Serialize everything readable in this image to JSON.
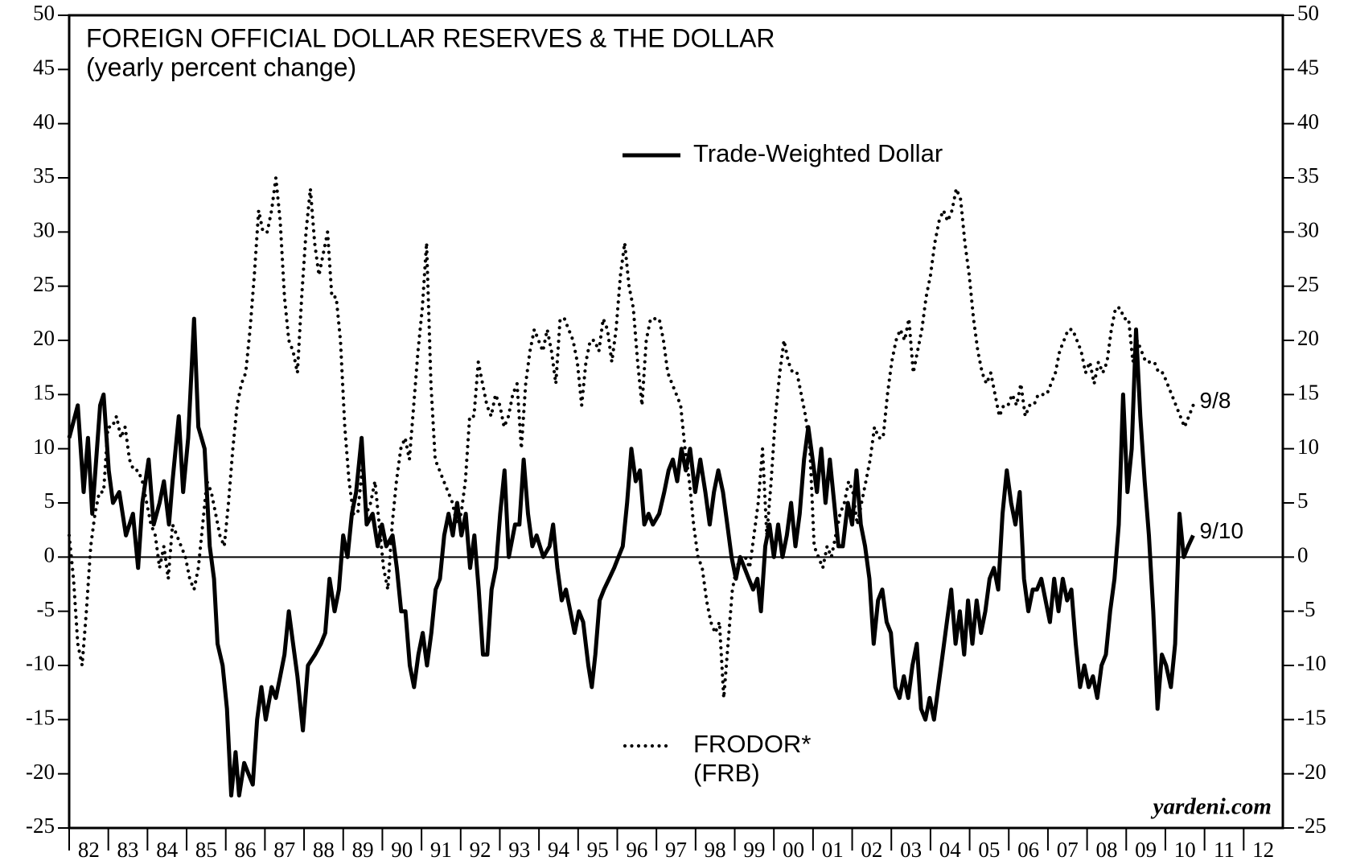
{
  "chart_data": {
    "type": "line",
    "title": "FOREIGN OFFICIAL DOLLAR RESERVES & THE DOLLAR",
    "subtitle": "(yearly percent change)",
    "watermark": "yardeni.com",
    "xlim": [
      1982,
      2013
    ],
    "xticks": [
      {
        "value": 1982,
        "label": "82"
      },
      {
        "value": 1983,
        "label": "83"
      },
      {
        "value": 1984,
        "label": "84"
      },
      {
        "value": 1985,
        "label": "85"
      },
      {
        "value": 1986,
        "label": "86"
      },
      {
        "value": 1987,
        "label": "87"
      },
      {
        "value": 1988,
        "label": "88"
      },
      {
        "value": 1989,
        "label": "89"
      },
      {
        "value": 1990,
        "label": "90"
      },
      {
        "value": 1991,
        "label": "91"
      },
      {
        "value": 1992,
        "label": "92"
      },
      {
        "value": 1993,
        "label": "93"
      },
      {
        "value": 1994,
        "label": "94"
      },
      {
        "value": 1995,
        "label": "95"
      },
      {
        "value": 1996,
        "label": "96"
      },
      {
        "value": 1997,
        "label": "97"
      },
      {
        "value": 1998,
        "label": "98"
      },
      {
        "value": 1999,
        "label": "99"
      },
      {
        "value": 2000,
        "label": "00"
      },
      {
        "value": 2001,
        "label": "01"
      },
      {
        "value": 2002,
        "label": "02"
      },
      {
        "value": 2003,
        "label": "03"
      },
      {
        "value": 2004,
        "label": "04"
      },
      {
        "value": 2005,
        "label": "05"
      },
      {
        "value": 2006,
        "label": "06"
      },
      {
        "value": 2007,
        "label": "07"
      },
      {
        "value": 2008,
        "label": "08"
      },
      {
        "value": 2009,
        "label": "09"
      },
      {
        "value": 2010,
        "label": "10"
      },
      {
        "value": 2011,
        "label": "11"
      },
      {
        "value": 2012,
        "label": "12"
      }
    ],
    "ylim": [
      -25,
      50
    ],
    "yticks": [
      -25,
      -20,
      -15,
      -10,
      -5,
      0,
      5,
      10,
      15,
      20,
      25,
      30,
      35,
      40,
      45,
      50
    ],
    "y2lim": [
      -25,
      50
    ],
    "y2ticks": [
      -25,
      -20,
      -15,
      -10,
      -5,
      0,
      5,
      10,
      15,
      20,
      25,
      30,
      35,
      40,
      45,
      50
    ],
    "reference_line": 0,
    "series": [
      {
        "name": "Trade-Weighted Dollar",
        "color": "#000000",
        "style": "solid",
        "end_label": "9/10",
        "x": [
          1982.0,
          1982.22,
          1982.37,
          1982.48,
          1982.59,
          1982.79,
          1982.88,
          1983.01,
          1983.12,
          1983.28,
          1983.45,
          1983.63,
          1983.76,
          1983.87,
          1984.03,
          1984.16,
          1984.31,
          1984.42,
          1984.55,
          1984.64,
          1984.8,
          1984.91,
          1985.04,
          1985.19,
          1985.3,
          1985.46,
          1985.59,
          1985.7,
          1985.79,
          1985.92,
          1986.03,
          1986.14,
          1986.25,
          1986.34,
          1986.47,
          1986.58,
          1986.69,
          1986.8,
          1986.91,
          1987.02,
          1987.17,
          1987.28,
          1987.39,
          1987.5,
          1987.61,
          1987.72,
          1987.83,
          1987.97,
          1988.1,
          1988.28,
          1988.43,
          1988.54,
          1988.65,
          1988.78,
          1988.89,
          1989.0,
          1989.11,
          1989.22,
          1989.33,
          1989.47,
          1989.6,
          1989.75,
          1989.88,
          1989.99,
          1990.1,
          1990.26,
          1990.37,
          1990.48,
          1990.59,
          1990.7,
          1990.81,
          1990.92,
          1991.03,
          1991.14,
          1991.25,
          1991.36,
          1991.47,
          1991.58,
          1991.69,
          1991.8,
          1991.91,
          1992.02,
          1992.13,
          1992.24,
          1992.35,
          1992.46,
          1992.57,
          1992.68,
          1992.79,
          1992.9,
          1993.01,
          1993.12,
          1993.23,
          1993.39,
          1993.5,
          1993.61,
          1993.72,
          1993.83,
          1993.94,
          1994.11,
          1994.27,
          1994.36,
          1994.47,
          1994.58,
          1994.69,
          1994.8,
          1994.91,
          1995.02,
          1995.13,
          1995.26,
          1995.35,
          1995.44,
          1995.55,
          1995.66,
          1995.79,
          1995.92,
          1996.03,
          1996.14,
          1996.25,
          1996.36,
          1996.47,
          1996.58,
          1996.69,
          1996.8,
          1996.91,
          1997.07,
          1997.2,
          1997.31,
          1997.42,
          1997.53,
          1997.64,
          1997.75,
          1997.86,
          1997.99,
          1998.12,
          1998.25,
          1998.36,
          1998.47,
          1998.58,
          1998.7,
          1998.81,
          1998.92,
          1999.03,
          1999.14,
          1999.25,
          1999.36,
          1999.47,
          1999.58,
          1999.67,
          1999.78,
          1999.89,
          2000.0,
          2000.11,
          2000.22,
          2000.33,
          2000.44,
          2000.55,
          2000.66,
          2000.77,
          2000.88,
          2000.99,
          2001.1,
          2001.21,
          2001.32,
          2001.43,
          2001.54,
          2001.65,
          2001.76,
          2001.89,
          2002.0,
          2002.11,
          2002.22,
          2002.33,
          2002.44,
          2002.55,
          2002.66,
          2002.77,
          2002.88,
          2002.99,
          2003.1,
          2003.21,
          2003.32,
          2003.43,
          2003.54,
          2003.65,
          2003.76,
          2003.87,
          2003.98,
          2004.09,
          2004.2,
          2004.31,
          2004.42,
          2004.53,
          2004.64,
          2004.75,
          2004.86,
          2004.96,
          2005.07,
          2005.18,
          2005.29,
          2005.4,
          2005.51,
          2005.62,
          2005.73,
          2005.84,
          2005.95,
          2006.06,
          2006.17,
          2006.28,
          2006.39,
          2006.5,
          2006.61,
          2006.72,
          2006.83,
          2006.94,
          2007.05,
          2007.16,
          2007.27,
          2007.38,
          2007.49,
          2007.6,
          2007.71,
          2007.82,
          2007.93,
          2008.04,
          2008.15,
          2008.26,
          2008.37,
          2008.48,
          2008.59,
          2008.7,
          2008.81,
          2008.92,
          2009.03,
          2009.14,
          2009.25,
          2009.36,
          2009.47,
          2009.58,
          2009.69,
          2009.8,
          2009.91,
          2010.02,
          2010.14,
          2010.25,
          2010.36,
          2010.47,
          2010.58,
          2010.71
        ],
        "values": [
          11,
          14,
          6,
          11,
          4,
          14,
          15,
          8,
          5,
          6,
          2,
          4,
          -1,
          5,
          9,
          3,
          5,
          7,
          3,
          7,
          13,
          6,
          11,
          22,
          12,
          10,
          1,
          -2,
          -8,
          -10,
          -14,
          -22,
          -18,
          -22,
          -19,
          -20,
          -21,
          -15,
          -12,
          -15,
          -12,
          -13,
          -11,
          -9,
          -5,
          -8,
          -11,
          -16,
          -10,
          -9,
          -8,
          -7,
          -2,
          -5,
          -3,
          2,
          0,
          4,
          6,
          11,
          3,
          4,
          1,
          3,
          1,
          2,
          -1,
          -5,
          -5,
          -10,
          -12,
          -9,
          -7,
          -10,
          -7,
          -3,
          -2,
          2,
          4,
          2,
          5,
          2,
          4,
          -1,
          2,
          -3,
          -9,
          -9,
          -3,
          -1,
          4,
          8,
          0,
          3,
          3,
          9,
          4,
          1,
          2,
          0,
          1,
          3,
          -1,
          -4,
          -3,
          -5,
          -7,
          -5,
          -6,
          -10,
          -12,
          -9,
          -4,
          -3,
          -2,
          -1,
          0,
          1,
          5,
          10,
          7,
          8,
          3,
          4,
          3,
          4,
          6,
          8,
          9,
          7,
          10,
          8,
          10,
          6,
          9,
          6,
          3,
          6,
          8,
          6,
          3,
          0,
          -2,
          0,
          -1,
          -2,
          -3,
          -2,
          -5,
          1,
          3,
          0,
          3,
          0,
          2,
          5,
          1,
          4,
          9,
          12,
          9,
          6,
          10,
          5,
          9,
          5,
          1,
          1,
          5,
          3,
          8,
          3,
          1,
          -2,
          -8,
          -4,
          -3,
          -6,
          -7,
          -12,
          -13,
          -11,
          -13,
          -10,
          -8,
          -14,
          -15,
          -13,
          -15,
          -12,
          -9,
          -6,
          -3,
          -8,
          -5,
          -9,
          -4,
          -8,
          -4,
          -7,
          -5,
          -2,
          -1,
          -3,
          4,
          8,
          5,
          3,
          6,
          -2,
          -5,
          -3,
          -3,
          -2,
          -4,
          -6,
          -2,
          -5,
          -2,
          -4,
          -3,
          -8,
          -12,
          -10,
          -12,
          -11,
          -13,
          -10,
          -9,
          -5,
          -2,
          3,
          15,
          6,
          10,
          21,
          13,
          7,
          2,
          -5,
          -14,
          -9,
          -10,
          -12,
          -8,
          4,
          0,
          1,
          2
        ]
      },
      {
        "name": "FRODOR*",
        "source": "(FRB)",
        "color": "#000000",
        "style": "dotted",
        "end_label": "9/8",
        "x": [
          1982,
          1982.11,
          1982.22,
          1982.33,
          1982.44,
          1982.55,
          1982.66,
          1982.77,
          1982.88,
          1982.99,
          1983.1,
          1983.21,
          1983.32,
          1983.43,
          1983.54,
          1983.65,
          1983.76,
          1983.87,
          1983.98,
          1984.09,
          1984.2,
          1984.31,
          1984.42,
          1984.53,
          1984.64,
          1984.75,
          1984.86,
          1984.97,
          1985.08,
          1985.19,
          1985.3,
          1985.41,
          1985.52,
          1985.63,
          1985.74,
          1985.85,
          1985.96,
          1986.07,
          1986.18,
          1986.29,
          1986.4,
          1986.51,
          1986.62,
          1986.73,
          1986.84,
          1986.95,
          1987.06,
          1987.17,
          1987.28,
          1987.39,
          1987.5,
          1987.61,
          1987.72,
          1987.83,
          1987.94,
          1988.05,
          1988.16,
          1988.27,
          1988.38,
          1988.49,
          1988.6,
          1988.71,
          1988.82,
          1988.93,
          1989.04,
          1989.15,
          1989.26,
          1989.37,
          1989.48,
          1989.59,
          1989.7,
          1989.81,
          1989.92,
          1990.03,
          1990.14,
          1990.25,
          1990.36,
          1990.47,
          1990.58,
          1990.69,
          1990.8,
          1990.91,
          1991.02,
          1991.13,
          1991.24,
          1991.35,
          1991.46,
          1991.57,
          1991.68,
          1991.79,
          1991.9,
          1992.01,
          1992.12,
          1992.23,
          1992.34,
          1992.45,
          1992.56,
          1992.67,
          1992.78,
          1992.89,
          1993,
          1993.11,
          1993.22,
          1993.33,
          1993.44,
          1993.55,
          1993.66,
          1993.77,
          1993.88,
          1993.99,
          1994.1,
          1994.21,
          1994.32,
          1994.43,
          1994.54,
          1994.65,
          1994.76,
          1994.87,
          1994.98,
          1995.09,
          1995.2,
          1995.31,
          1995.42,
          1995.53,
          1995.64,
          1995.75,
          1995.86,
          1995.97,
          1996.08,
          1996.19,
          1996.3,
          1996.41,
          1996.52,
          1996.63,
          1996.74,
          1996.85,
          1996.96,
          1997.07,
          1997.18,
          1997.29,
          1997.4,
          1997.51,
          1997.62,
          1997.73,
          1997.84,
          1997.95,
          1998.06,
          1998.17,
          1998.28,
          1998.39,
          1998.5,
          1998.61,
          1998.72,
          1998.83,
          1998.94,
          1999.05,
          1999.16,
          1999.27,
          1999.38,
          1999.49,
          1999.6,
          1999.71,
          1999.82,
          1999.93,
          2000.04,
          2000.15,
          2000.26,
          2000.37,
          2000.48,
          2000.59,
          2000.7,
          2000.81,
          2000.92,
          2001.03,
          2001.14,
          2001.25,
          2001.36,
          2001.47,
          2001.58,
          2001.69,
          2001.8,
          2001.91,
          2002.02,
          2002.13,
          2002.24,
          2002.35,
          2002.46,
          2002.57,
          2002.68,
          2002.79,
          2002.9,
          2003.01,
          2003.12,
          2003.23,
          2003.34,
          2003.45,
          2003.56,
          2003.67,
          2003.78,
          2003.89,
          2004,
          2004.11,
          2004.22,
          2004.33,
          2004.44,
          2004.55,
          2004.66,
          2004.77,
          2004.88,
          2004.99,
          2005.1,
          2005.21,
          2005.32,
          2005.43,
          2005.54,
          2005.65,
          2005.76,
          2005.87,
          2005.98,
          2006.09,
          2006.2,
          2006.31,
          2006.42,
          2006.53,
          2006.64,
          2006.75,
          2006.86,
          2006.97,
          2007.08,
          2007.19,
          2007.3,
          2007.41,
          2007.52,
          2007.63,
          2007.74,
          2007.85,
          2007.96,
          2008.07,
          2008.18,
          2008.29,
          2008.4,
          2008.51,
          2008.62,
          2008.73,
          2008.84,
          2008.95,
          2009.06,
          2009.17,
          2009.28,
          2009.39,
          2009.5,
          2009.61,
          2009.72,
          2009.83,
          2009.94,
          2010.05,
          2010.16,
          2010.27,
          2010.38,
          2010.49,
          2010.6,
          2010.71
        ],
        "values": [
          2,
          -2,
          -8,
          -10,
          -5,
          1,
          4,
          6,
          6,
          12,
          12,
          13,
          11,
          12,
          9,
          8,
          8,
          7,
          5,
          3,
          2,
          -1,
          1,
          -2,
          3,
          2,
          1,
          0,
          -2,
          -3,
          -1,
          3,
          7,
          6,
          4,
          2,
          1,
          5,
          10,
          14,
          16,
          17,
          21,
          26,
          32,
          30,
          30,
          32,
          35,
          31,
          24,
          20,
          19,
          17,
          24,
          30,
          34,
          29,
          26,
          28,
          30,
          24,
          24,
          20,
          12,
          7,
          4,
          4,
          8,
          4,
          5,
          7,
          3,
          -1,
          -3,
          3,
          7,
          10,
          11,
          9,
          14,
          19,
          23,
          29,
          16,
          9,
          8,
          7,
          6,
          5,
          3,
          4,
          7,
          13,
          13,
          18,
          16,
          14,
          13,
          15,
          14,
          12,
          13,
          15,
          16,
          10,
          16,
          19,
          21,
          20,
          19,
          21,
          19,
          16,
          22,
          22,
          21,
          20,
          18,
          14,
          18,
          20,
          20,
          19,
          22,
          21,
          18,
          21,
          26,
          29,
          25,
          23,
          18,
          14,
          20,
          22,
          22,
          22,
          20,
          17,
          16,
          15,
          14,
          10,
          7,
          3,
          0,
          -1,
          -4,
          -6,
          -7,
          -6,
          -13,
          -8,
          -3,
          -1,
          0,
          0,
          -1,
          2,
          5,
          10,
          2,
          7,
          13,
          17,
          20,
          18,
          17,
          17,
          15,
          13,
          10,
          1,
          0,
          -1,
          1,
          0,
          2,
          4,
          5,
          7,
          6,
          3,
          5,
          7,
          9,
          12,
          11,
          11,
          15,
          18,
          20,
          21,
          20,
          22,
          17,
          19,
          21,
          24,
          26,
          29,
          31,
          32,
          31,
          32,
          34,
          33,
          29,
          26,
          22,
          19,
          17,
          16,
          17,
          15,
          13,
          14,
          14,
          15,
          14,
          16,
          13,
          14,
          14,
          15,
          15,
          15,
          16,
          17,
          19,
          20,
          21,
          21,
          20,
          19,
          17,
          18,
          16,
          18,
          17,
          18,
          21,
          23,
          23,
          22,
          22,
          18,
          20,
          19,
          18,
          18,
          18,
          17,
          17,
          16,
          15,
          14,
          13,
          12,
          13,
          14
        ]
      }
    ]
  }
}
